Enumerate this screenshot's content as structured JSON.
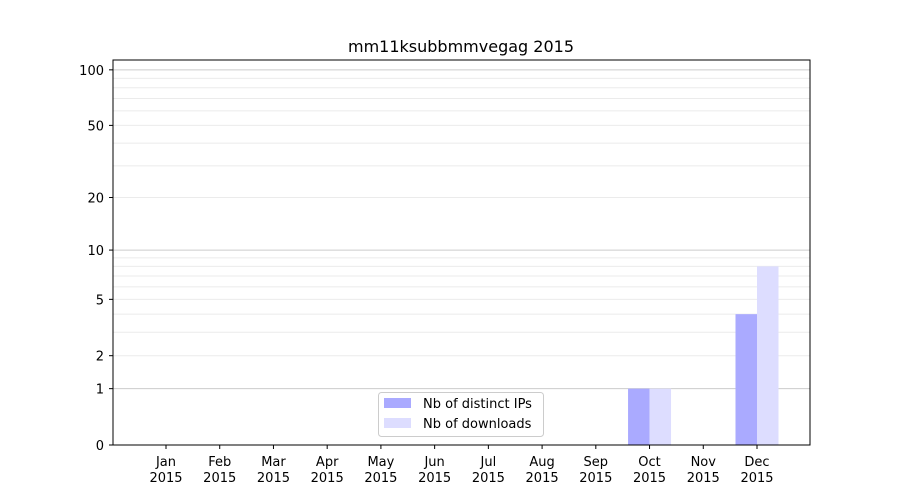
{
  "chart_data": {
    "type": "bar",
    "title": "mm11ksubbmmvegag 2015",
    "xlabel": "",
    "ylabel": "",
    "yscale": "log(1+y)",
    "ylim": [
      0,
      113
    ],
    "yticks": [
      0,
      1,
      2,
      5,
      10,
      20,
      50,
      100
    ],
    "grid": true,
    "legend_placement": "lower-center",
    "categories": [
      "Jan\n2015",
      "Feb\n2015",
      "Mar\n2015",
      "Apr\n2015",
      "May\n2015",
      "Jun\n2015",
      "Jul\n2015",
      "Aug\n2015",
      "Sep\n2015",
      "Oct\n2015",
      "Nov\n2015",
      "Dec\n2015"
    ],
    "series": [
      {
        "name": "Nb of distinct IPs",
        "color": "#aaaaff",
        "values": [
          0,
          0,
          0,
          0,
          0,
          0,
          0,
          0,
          0,
          1,
          0,
          4
        ]
      },
      {
        "name": "Nb of downloads",
        "color": "#ddddff",
        "values": [
          0,
          0,
          0,
          0,
          0,
          0,
          0,
          0,
          0,
          1,
          0,
          8
        ]
      }
    ]
  }
}
